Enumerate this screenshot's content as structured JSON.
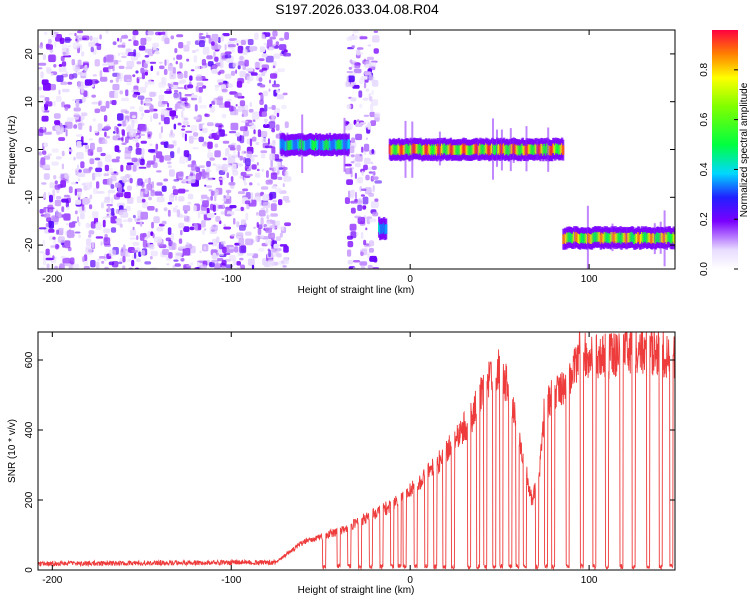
{
  "title": "S197.2026.033.04.08.R04",
  "chart_data": [
    {
      "type": "heatmap",
      "title": "S197.2026.033.04.08.R04",
      "xlabel": "Height of straight line (km)",
      "ylabel": "Frequency (Hz)",
      "xlim": [
        -208,
        148
      ],
      "ylim": [
        -25,
        25
      ],
      "xticks": [
        -200,
        -100,
        0,
        100
      ],
      "yticks": [
        -20,
        -10,
        0,
        10,
        20
      ],
      "xtick_labels": [
        "-200",
        "-100",
        "0",
        "100"
      ],
      "ytick_labels": [
        "-20",
        "-10",
        "0",
        "10",
        "20"
      ],
      "regions": [
        {
          "name": "noise",
          "x": [
            -208,
            -70
          ],
          "y": [
            -25,
            25
          ]
        },
        {
          "name": "noise-strip",
          "x": [
            -37,
            -20
          ],
          "y": [
            -25,
            25
          ]
        },
        {
          "name": "echo-segment",
          "x": [
            -73,
            -35
          ],
          "y_center": 1.0,
          "peak": 0.55
        },
        {
          "name": "echo-segment",
          "x": [
            -18,
            -14
          ],
          "y_center": -16.5,
          "peak": 0.5
        },
        {
          "name": "echo-segment",
          "x": [
            -12,
            85
          ],
          "y_center": 0.0,
          "peak": 0.97
        },
        {
          "name": "echo-segment",
          "x": [
            85,
            148
          ],
          "y_center": -18.5,
          "peak": 0.9
        }
      ],
      "colorbar": {
        "label": "Normalized spectral amplitude",
        "range": [
          0,
          0.96
        ],
        "ticks": [
          0.0,
          0.2,
          0.4,
          0.6,
          0.8
        ],
        "tick_labels": [
          "0.0",
          "0.2",
          "0.4",
          "0.6",
          "0.8"
        ]
      }
    },
    {
      "type": "line",
      "xlabel": "Height of straight line (km)",
      "ylabel": "SNR (10 * v/v)",
      "xlim": [
        -208,
        148
      ],
      "ylim": [
        0,
        680
      ],
      "xticks": [
        -200,
        -100,
        0,
        100
      ],
      "yticks": [
        0,
        200,
        400,
        600
      ],
      "xtick_labels": [
        "-200",
        "-100",
        "0",
        "100"
      ],
      "ytick_labels": [
        "0",
        "200",
        "400",
        "600"
      ],
      "color": "#ee3b3b",
      "envelope": {
        "x": [
          -208,
          -75,
          -60,
          -40,
          -20,
          -5,
          5,
          15,
          25,
          35,
          40,
          45,
          50,
          55,
          62,
          68,
          72,
          75,
          80,
          85,
          90,
          95,
          100,
          110,
          120,
          130,
          140,
          148
        ],
        "y": [
          18,
          22,
          80,
          110,
          160,
          200,
          250,
          300,
          370,
          440,
          520,
          560,
          580,
          520,
          350,
          200,
          260,
          460,
          500,
          520,
          560,
          620,
          615,
          610,
          630,
          625,
          620,
          600
        ]
      },
      "dropouts": [
        -48,
        -40,
        -34,
        -28,
        -22,
        -16,
        -10,
        -6,
        -3,
        3,
        9,
        14,
        19,
        24,
        33,
        38,
        42,
        47,
        51,
        56,
        60,
        64,
        71,
        76,
        80,
        88,
        96,
        103,
        110,
        118,
        125,
        133,
        140,
        146
      ]
    }
  ]
}
